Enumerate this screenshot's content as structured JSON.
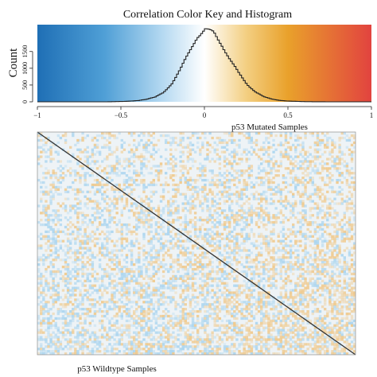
{
  "chart_data": [
    {
      "type": "histogram",
      "title": "Correlation Color Key and Histogram",
      "ylabel": "Count",
      "xlim": [
        -1,
        1
      ],
      "ylim": [
        0,
        2300
      ],
      "x_ticks": [
        {
          "value": -1,
          "label": "−1"
        },
        {
          "value": -0.5,
          "label": "−0.5"
        },
        {
          "value": 0,
          "label": "0"
        },
        {
          "value": 0.5,
          "label": "0.5"
        },
        {
          "value": 1,
          "label": "1"
        }
      ],
      "y_ticks": [
        {
          "value": 0,
          "label": "0"
        },
        {
          "value": 500,
          "label": "500"
        },
        {
          "value": 1000,
          "label": "1000"
        },
        {
          "value": 1500,
          "label": "1500"
        }
      ],
      "colorscale": [
        {
          "at": -1.0,
          "color": "#1f6fb5"
        },
        {
          "at": -0.6,
          "color": "#4f9fd6"
        },
        {
          "at": -0.25,
          "color": "#b5d9f1"
        },
        {
          "at": 0.0,
          "color": "#ffffff"
        },
        {
          "at": 0.25,
          "color": "#f3cf82"
        },
        {
          "at": 0.5,
          "color": "#e9a12b"
        },
        {
          "at": 1.0,
          "color": "#e2433f"
        }
      ],
      "curve": {
        "x": [
          -0.6,
          -0.5,
          -0.45,
          -0.4,
          -0.35,
          -0.3,
          -0.25,
          -0.2,
          -0.15,
          -0.1,
          -0.05,
          0.0,
          0.05,
          0.1,
          0.15,
          0.2,
          0.25,
          0.3,
          0.35,
          0.4,
          0.45,
          0.5,
          0.6,
          0.75,
          1.0
        ],
        "y": [
          0,
          10,
          20,
          40,
          80,
          140,
          280,
          550,
          950,
          1450,
          1950,
          2150,
          2050,
          1700,
          1250,
          850,
          520,
          300,
          150,
          80,
          40,
          20,
          5,
          0,
          0
        ]
      }
    },
    {
      "type": "heatmap",
      "top_label": "p53 Mutated Samples",
      "bottom_label": "p53 Wildtype Samples",
      "colors": {
        "base": "#eef3f6",
        "negative": "#9fd0ee",
        "positive": "#f0c27a",
        "diagonal": "#333333",
        "frame": "#9a9a9a"
      }
    }
  ]
}
